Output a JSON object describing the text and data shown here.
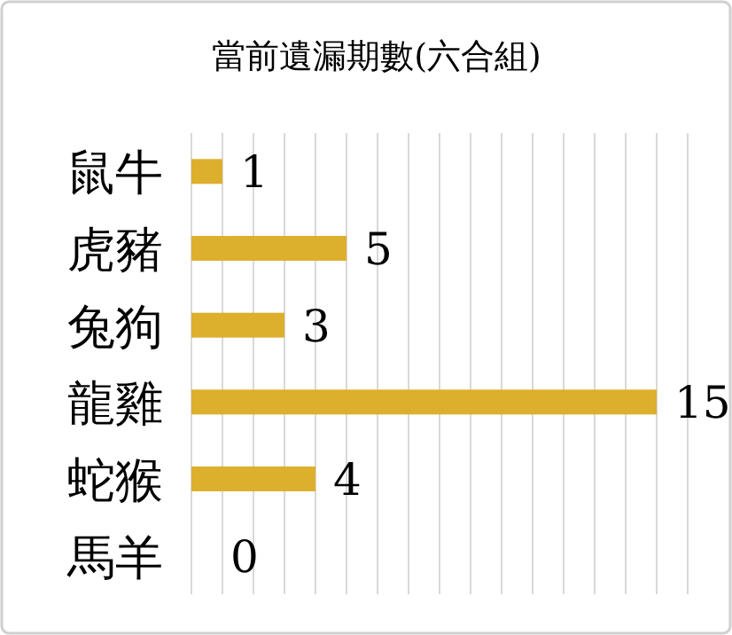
{
  "chart_data": {
    "type": "bar",
    "orientation": "horizontal",
    "title": "當前遺漏期數(六合組)",
    "categories": [
      "鼠牛",
      "虎豬",
      "兔狗",
      "龍雞",
      "蛇猴",
      "馬羊"
    ],
    "values": [
      1,
      5,
      3,
      15,
      4,
      0
    ],
    "color": "#dcaf2c",
    "xlim": [
      0,
      16
    ],
    "xticks": [
      {
        "value": 0,
        "label": null
      },
      {
        "value": 1,
        "label": null
      },
      {
        "value": 2,
        "label": null
      },
      {
        "value": 3,
        "label": null
      },
      {
        "value": 4,
        "label": null
      },
      {
        "value": 5,
        "label": null
      },
      {
        "value": 6,
        "label": null
      },
      {
        "value": 7,
        "label": null
      },
      {
        "value": 8,
        "label": null
      },
      {
        "value": 9,
        "label": null
      },
      {
        "value": 10,
        "label": null
      },
      {
        "value": 11,
        "label": null
      },
      {
        "value": 12,
        "label": null
      },
      {
        "value": 13,
        "label": null
      },
      {
        "value": 14,
        "label": null
      },
      {
        "value": 15,
        "label": null
      },
      {
        "value": 16,
        "label": null
      }
    ],
    "grid": "x",
    "data_labels": true
  }
}
